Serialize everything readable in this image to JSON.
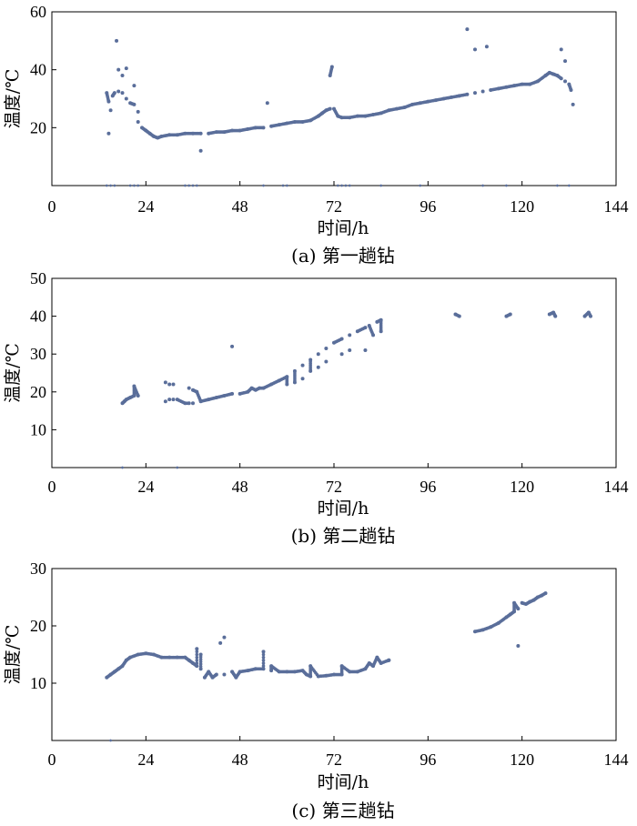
{
  "colors": {
    "series": "#5a6e9a",
    "axis": "#000000"
  },
  "chart_data": [
    {
      "type": "scatter",
      "caption": "(a) 第一趟钻",
      "xlabel": "时间/h",
      "ylabel": "温度/℃",
      "xlim": [
        0,
        144
      ],
      "ylim": [
        0,
        60
      ],
      "xticks": [
        0,
        24,
        48,
        72,
        96,
        120,
        144
      ],
      "yticks": [
        20,
        40,
        60
      ],
      "grid": false,
      "series": [
        {
          "points": [
            [
              14,
              32
            ],
            [
              14.5,
              29
            ],
            [
              15,
              26
            ],
            [
              15.5,
              31
            ],
            [
              16,
              32
            ],
            [
              17,
              32.5
            ],
            [
              18,
              32
            ],
            [
              19,
              30
            ],
            [
              20,
              28.5
            ],
            [
              21,
              28
            ],
            [
              22,
              22
            ],
            [
              23,
              20
            ],
            [
              24,
              19
            ],
            [
              25,
              18
            ],
            [
              26,
              17
            ],
            [
              27,
              16.5
            ],
            [
              28,
              17
            ],
            [
              30,
              17.5
            ],
            [
              32,
              17.5
            ],
            [
              34,
              18
            ],
            [
              36,
              18
            ],
            [
              38,
              18
            ],
            [
              40,
              18
            ],
            [
              42,
              18.5
            ],
            [
              44,
              18.5
            ],
            [
              46,
              19
            ],
            [
              48,
              19
            ],
            [
              50,
              19.5
            ],
            [
              52,
              20
            ],
            [
              54,
              20
            ],
            [
              56,
              20.5
            ],
            [
              58,
              21
            ],
            [
              60,
              21.5
            ],
            [
              62,
              22
            ],
            [
              64,
              22
            ],
            [
              66,
              22.5
            ],
            [
              68,
              24
            ],
            [
              69,
              25
            ],
            [
              70,
              26
            ],
            [
              71,
              26.5
            ],
            [
              72,
              26.5
            ],
            [
              73,
              24
            ],
            [
              74,
              23.5
            ],
            [
              76,
              23.5
            ],
            [
              78,
              24
            ],
            [
              80,
              24
            ],
            [
              82,
              24.5
            ],
            [
              84,
              25
            ],
            [
              86,
              26
            ],
            [
              88,
              26.5
            ],
            [
              90,
              27
            ],
            [
              92,
              28
            ],
            [
              94,
              28.5
            ],
            [
              96,
              29
            ],
            [
              98,
              29.5
            ],
            [
              100,
              30
            ],
            [
              102,
              30.5
            ],
            [
              104,
              31
            ],
            [
              106,
              31.5
            ],
            [
              108,
              32
            ],
            [
              110,
              32.5
            ],
            [
              112,
              33
            ],
            [
              114,
              33.5
            ],
            [
              116,
              34
            ],
            [
              118,
              34.5
            ],
            [
              120,
              35
            ],
            [
              122,
              35
            ],
            [
              124,
              36
            ],
            [
              126,
              38
            ],
            [
              127,
              39
            ],
            [
              128,
              38.5
            ],
            [
              129,
              38
            ],
            [
              130,
              37
            ],
            [
              131,
              36
            ],
            [
              132,
              35
            ],
            [
              132.5,
              33
            ],
            [
              133,
              28
            ],
            [
              14.5,
              18
            ],
            [
              16.5,
              50
            ],
            [
              17,
              40
            ],
            [
              18,
              38
            ],
            [
              19,
              40.5
            ],
            [
              21,
              34.5
            ],
            [
              22,
              25.5
            ],
            [
              38,
              12
            ],
            [
              55,
              28.5
            ],
            [
              71,
              38
            ],
            [
              71.5,
              41
            ],
            [
              106,
              54
            ],
            [
              108,
              47
            ],
            [
              111,
              48
            ],
            [
              130,
              47
            ],
            [
              131,
              43
            ]
          ],
          "baseline_points": [
            14,
            15,
            16,
            20,
            21,
            22,
            34,
            35,
            36,
            37,
            54,
            59,
            60,
            73,
            74,
            75,
            76,
            84,
            94,
            110,
            116,
            129,
            132
          ]
        }
      ]
    },
    {
      "type": "scatter",
      "caption": "(b) 第二趟钻",
      "xlabel": "时间/h",
      "ylabel": "温度/℃",
      "xlim": [
        0,
        144
      ],
      "ylim": [
        0,
        50
      ],
      "xticks": [
        0,
        24,
        48,
        72,
        96,
        120,
        144
      ],
      "yticks": [
        10,
        20,
        30,
        40,
        50
      ],
      "grid": false,
      "series": [
        {
          "points": [
            [
              18,
              17
            ],
            [
              18.5,
              17.5
            ],
            [
              19,
              18
            ],
            [
              20,
              18.5
            ],
            [
              21,
              19
            ],
            [
              22,
              19
            ],
            [
              29,
              17.5
            ],
            [
              30,
              18
            ],
            [
              31,
              18
            ],
            [
              32,
              18
            ],
            [
              34,
              17
            ],
            [
              35,
              17
            ],
            [
              36,
              17
            ],
            [
              38,
              17.5
            ],
            [
              40,
              18
            ],
            [
              42,
              18.5
            ],
            [
              44,
              19
            ],
            [
              46,
              19.5
            ],
            [
              48,
              19.5
            ],
            [
              50,
              20
            ],
            [
              52,
              20.5
            ],
            [
              54,
              21
            ],
            [
              56,
              22
            ],
            [
              58,
              23
            ],
            [
              60,
              24
            ],
            [
              62,
              25.5
            ],
            [
              64,
              27
            ],
            [
              66,
              28.5
            ],
            [
              68,
              30
            ],
            [
              70,
              31.5
            ],
            [
              72,
              33
            ],
            [
              74,
              34
            ],
            [
              76,
              35
            ],
            [
              78,
              36
            ],
            [
              80,
              37
            ],
            [
              81,
              37.5
            ],
            [
              83,
              38.5
            ],
            [
              84,
              39
            ],
            [
              103,
              40.5
            ],
            [
              104,
              40
            ],
            [
              116,
              40
            ],
            [
              117,
              40.5
            ],
            [
              127,
              40.5
            ],
            [
              128,
              41
            ],
            [
              128.5,
              40
            ],
            [
              136,
              40
            ],
            [
              137,
              41
            ],
            [
              137.5,
              40
            ],
            [
              21,
              21.5
            ],
            [
              29,
              22.5
            ],
            [
              30,
              22
            ],
            [
              31,
              22
            ],
            [
              35,
              21
            ],
            [
              36,
              20.5
            ],
            [
              37,
              20
            ],
            [
              46,
              32
            ],
            [
              51,
              21
            ],
            [
              53,
              21
            ],
            [
              60,
              22
            ],
            [
              62,
              22.5
            ],
            [
              64,
              23.5
            ],
            [
              66,
              25.5
            ],
            [
              68,
              26.5
            ],
            [
              70,
              28
            ],
            [
              74,
              30
            ],
            [
              76,
              31
            ],
            [
              80,
              31
            ],
            [
              82,
              35
            ],
            [
              84,
              36
            ]
          ],
          "baseline_points": [
            18,
            32
          ]
        }
      ]
    },
    {
      "type": "scatter",
      "caption": "(c) 第三趟钻",
      "xlabel": "时间/h",
      "ylabel": "温度/℃",
      "xlim": [
        0,
        144
      ],
      "ylim": [
        0,
        30
      ],
      "xticks": [
        0,
        24,
        48,
        72,
        96,
        120,
        144
      ],
      "yticks": [
        10,
        20,
        30
      ],
      "grid": false,
      "series": [
        {
          "points": [
            [
              14,
              11
            ],
            [
              15,
              11.5
            ],
            [
              16,
              12
            ],
            [
              17,
              12.5
            ],
            [
              18,
              13
            ],
            [
              19,
              14
            ],
            [
              20,
              14.5
            ],
            [
              22,
              15
            ],
            [
              24,
              15.2
            ],
            [
              26,
              15
            ],
            [
              28,
              14.5
            ],
            [
              30,
              14.5
            ],
            [
              32,
              14.5
            ],
            [
              34,
              14.5
            ],
            [
              35,
              14
            ],
            [
              36,
              13.5
            ],
            [
              37,
              13
            ],
            [
              38,
              12.5
            ],
            [
              40,
              12
            ],
            [
              42,
              11.5
            ],
            [
              44,
              11.5
            ],
            [
              46,
              12
            ],
            [
              48,
              12
            ],
            [
              50,
              12.2
            ],
            [
              52,
              12.5
            ],
            [
              54,
              12.5
            ],
            [
              56,
              12.2
            ],
            [
              58,
              12
            ],
            [
              60,
              12
            ],
            [
              62,
              12
            ],
            [
              64,
              12.2
            ],
            [
              65,
              11.5
            ],
            [
              66,
              11.2
            ],
            [
              68,
              11.2
            ],
            [
              70,
              11.3
            ],
            [
              72,
              11.5
            ],
            [
              74,
              11.5
            ],
            [
              76,
              12
            ],
            [
              78,
              12
            ],
            [
              80,
              12.5
            ],
            [
              82,
              13
            ],
            [
              84,
              13.5
            ],
            [
              86,
              14
            ],
            [
              108,
              19
            ],
            [
              110,
              19.3
            ],
            [
              112,
              19.8
            ],
            [
              114,
              20.5
            ],
            [
              116,
              21.5
            ],
            [
              117,
              22
            ],
            [
              118,
              22.5
            ],
            [
              119,
              23
            ],
            [
              120,
              24
            ],
            [
              121,
              23.8
            ],
            [
              122,
              24.2
            ],
            [
              123,
              24.5
            ],
            [
              124,
              25
            ],
            [
              125,
              25.3
            ],
            [
              126,
              25.7
            ],
            [
              37,
              16
            ],
            [
              38,
              15
            ],
            [
              39,
              11
            ],
            [
              41,
              11
            ],
            [
              43,
              17
            ],
            [
              44,
              18
            ],
            [
              47,
              11
            ],
            [
              54,
              15.5
            ],
            [
              56,
              13
            ],
            [
              66,
              13
            ],
            [
              74,
              13
            ],
            [
              81,
              13.5
            ],
            [
              83,
              14.5
            ],
            [
              86,
              14
            ],
            [
              118,
              24
            ],
            [
              119,
              16.5
            ]
          ],
          "baseline_points": [
            15
          ]
        }
      ]
    }
  ]
}
